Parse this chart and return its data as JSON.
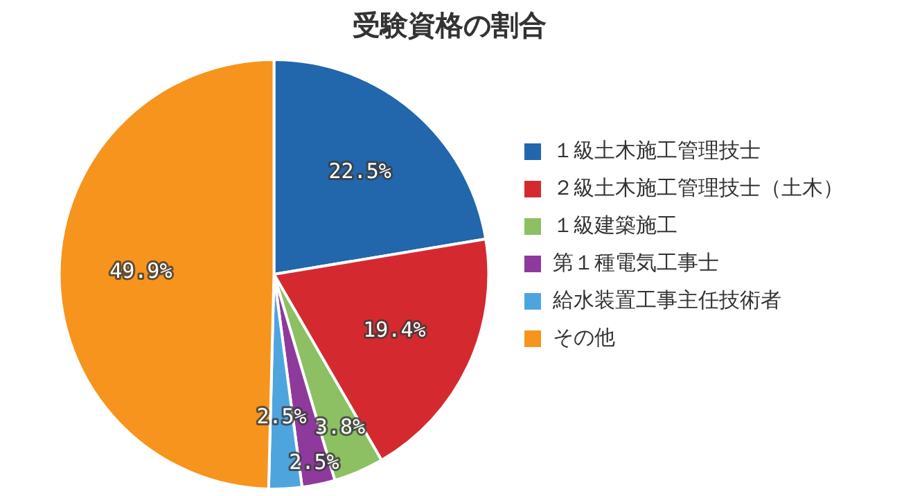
{
  "chart_data": {
    "type": "pie",
    "title": "受験資格の割合",
    "categories": [
      "１級土木施工管理技士",
      "２級土木施工管理技士（土木）",
      "１級建築施工",
      "第１種電気工事士",
      "給水装置工事主任技術者",
      "その他"
    ],
    "values": [
      22.5,
      19.4,
      3.8,
      2.5,
      2.5,
      49.9
    ],
    "colors": [
      "#2266ac",
      "#d42a2f",
      "#8cc063",
      "#8e3a9c",
      "#4ea5de",
      "#f7941d"
    ],
    "value_labels": [
      "22.5%",
      "19.4%",
      "3.8%",
      "2.5%",
      "2.5%",
      "49.9%"
    ],
    "legend": "right"
  }
}
